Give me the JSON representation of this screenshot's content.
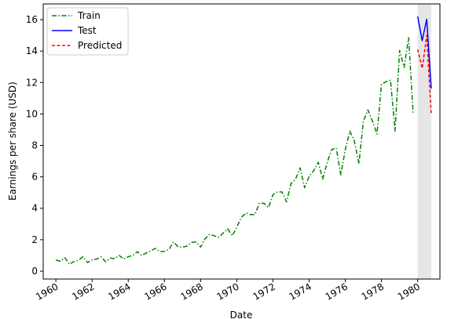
{
  "chart_data": {
    "type": "line",
    "title": "",
    "xlabel": "Date",
    "ylabel": "Earnings per share (USD)",
    "xlim": [
      1959.3,
      1981.23
    ],
    "ylim": [
      -0.5,
      17.0
    ],
    "grid": false,
    "legend_position": "top-left",
    "x_ticks": [
      1960,
      1962,
      1964,
      1966,
      1968,
      1970,
      1972,
      1974,
      1976,
      1978,
      1980
    ],
    "x_tick_labels": [
      "1960",
      "1962",
      "1964",
      "1966",
      "1968",
      "1970",
      "1972",
      "1974",
      "1976",
      "1978",
      "1980"
    ],
    "y_ticks": [
      0,
      2,
      4,
      6,
      8,
      10,
      12,
      14,
      16
    ],
    "y_tick_labels": [
      "0",
      "2",
      "4",
      "6",
      "8",
      "10",
      "12",
      "14",
      "16"
    ],
    "shaded_region": {
      "x_start": 1980.0,
      "x_end": 1980.75,
      "color": "#808080"
    },
    "series": [
      {
        "name": "Train",
        "color": "#008000",
        "style": "dashdot",
        "x": [
          1960.0,
          1960.25,
          1960.5,
          1960.75,
          1961.0,
          1961.25,
          1961.5,
          1961.75,
          1962.0,
          1962.25,
          1962.5,
          1962.75,
          1963.0,
          1963.25,
          1963.5,
          1963.75,
          1964.0,
          1964.25,
          1964.5,
          1964.75,
          1965.0,
          1965.25,
          1965.5,
          1965.75,
          1966.0,
          1966.25,
          1966.5,
          1966.75,
          1967.0,
          1967.25,
          1967.5,
          1967.75,
          1968.0,
          1968.25,
          1968.5,
          1968.75,
          1969.0,
          1969.25,
          1969.5,
          1969.75,
          1970.0,
          1970.25,
          1970.5,
          1970.75,
          1971.0,
          1971.25,
          1971.5,
          1971.75,
          1972.0,
          1972.25,
          1972.5,
          1972.75,
          1973.0,
          1973.25,
          1973.5,
          1973.75,
          1974.0,
          1974.25,
          1974.5,
          1974.75,
          1975.0,
          1975.25,
          1975.5,
          1975.75,
          1976.0,
          1976.25,
          1976.5,
          1976.75,
          1977.0,
          1977.25,
          1977.5,
          1977.75,
          1978.0,
          1978.25,
          1978.5,
          1978.75,
          1979.0,
          1979.25,
          1979.5,
          1979.75
        ],
        "values": [
          0.71,
          0.63,
          0.85,
          0.44,
          0.61,
          0.69,
          0.92,
          0.55,
          0.72,
          0.77,
          0.92,
          0.6,
          0.83,
          0.8,
          1.0,
          0.77,
          0.92,
          1.0,
          1.24,
          1.0,
          1.16,
          1.3,
          1.45,
          1.25,
          1.26,
          1.38,
          1.86,
          1.56,
          1.53,
          1.59,
          1.83,
          1.86,
          1.53,
          2.07,
          2.34,
          2.25,
          2.16,
          2.43,
          2.7,
          2.25,
          2.79,
          3.42,
          3.69,
          3.6,
          3.6,
          4.32,
          4.32,
          4.05,
          4.86,
          5.04,
          5.04,
          4.41,
          5.58,
          5.85,
          6.57,
          5.31,
          6.03,
          6.39,
          6.93,
          5.85,
          6.93,
          7.74,
          7.83,
          6.12,
          7.74,
          8.91,
          8.28,
          6.84,
          9.54,
          10.26,
          9.54,
          8.73,
          11.88,
          12.06,
          12.15,
          8.91,
          14.04,
          12.96,
          14.85,
          9.99
        ]
      },
      {
        "name": "Test",
        "color": "#0000ff",
        "style": "solid",
        "x": [
          1980.0,
          1980.25,
          1980.5,
          1980.75
        ],
        "values": [
          16.2,
          14.67,
          16.02,
          11.61
        ]
      },
      {
        "name": "Predicted",
        "color": "#ff0000",
        "style": "dashed",
        "x": [
          1980.0,
          1980.25,
          1980.5,
          1980.75
        ],
        "values": [
          14.1,
          12.9,
          15.0,
          9.99
        ]
      }
    ]
  }
}
